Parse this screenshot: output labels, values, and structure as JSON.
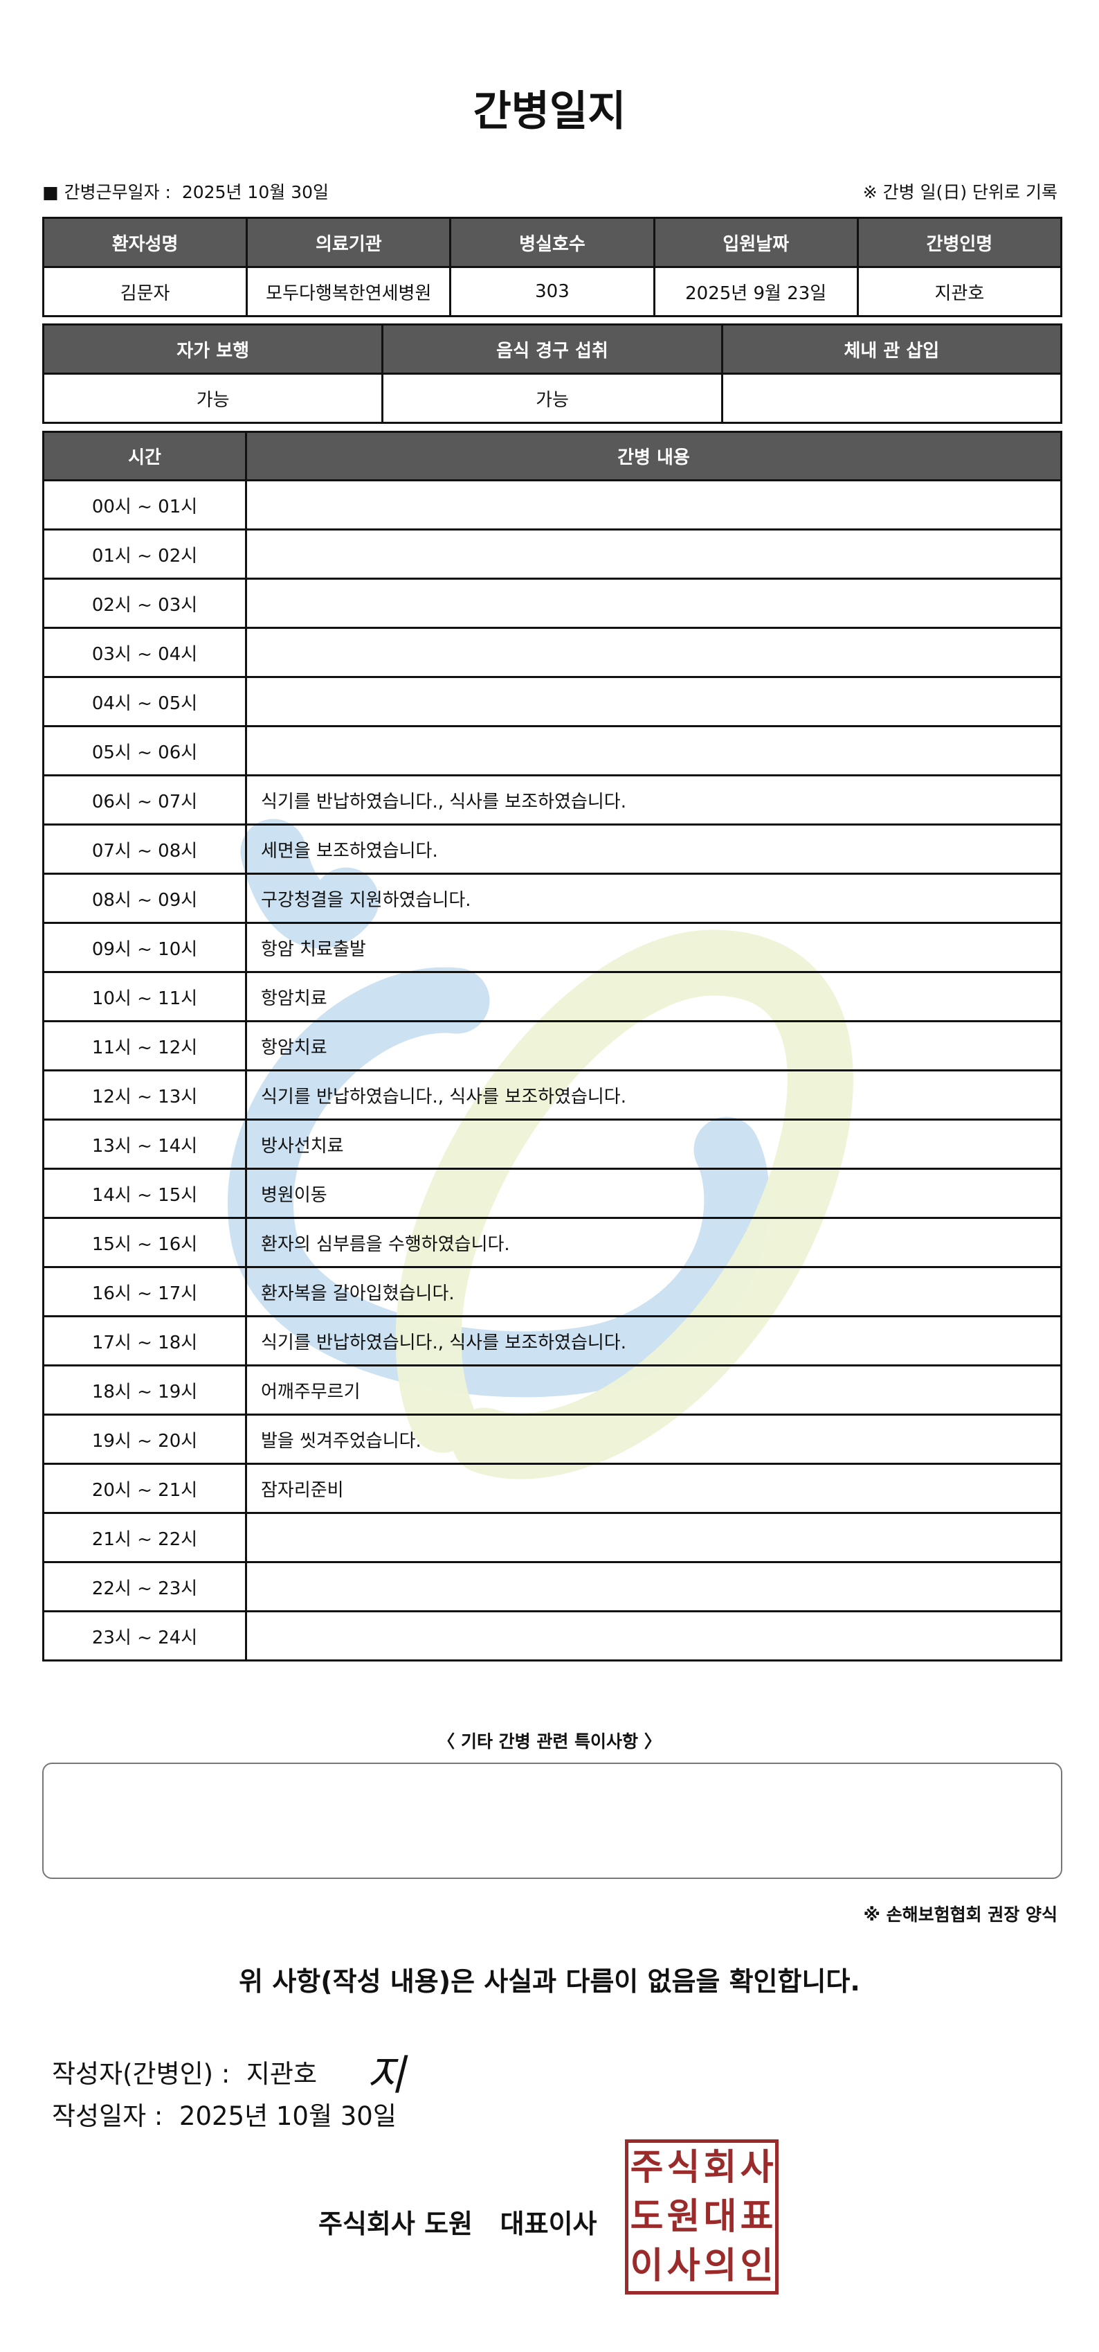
{
  "title": "간병일지",
  "info": {
    "work_date_label": "■ 간병근무일자 :",
    "work_date": "2025년 10월 30일",
    "note": "※ 간병 일(日) 단위로 기록"
  },
  "patient_table": {
    "headers": [
      "환자성명",
      "의료기관",
      "병실호수",
      "입원날짜",
      "간병인명"
    ],
    "values": [
      "김문자",
      "모두다행복한연세병원",
      "303",
      "2025년 9월 23일",
      "지관호"
    ]
  },
  "status_table": {
    "headers": [
      "자가 보행",
      "음식 경구 섭취",
      "체내 관 삽입"
    ],
    "values": [
      "가능",
      "가능",
      ""
    ]
  },
  "log_table": {
    "headers": [
      "시간",
      "간병 내용"
    ],
    "rows": [
      {
        "time": "00시 ~ 01시",
        "content": ""
      },
      {
        "time": "01시 ~ 02시",
        "content": ""
      },
      {
        "time": "02시 ~ 03시",
        "content": ""
      },
      {
        "time": "03시 ~ 04시",
        "content": ""
      },
      {
        "time": "04시 ~ 05시",
        "content": ""
      },
      {
        "time": "05시 ~ 06시",
        "content": ""
      },
      {
        "time": "06시 ~ 07시",
        "content": "식기를 반납하였습니다., 식사를 보조하였습니다."
      },
      {
        "time": "07시 ~ 08시",
        "content": "세면을 보조하였습니다."
      },
      {
        "time": "08시 ~ 09시",
        "content": "구강청결을 지원하였습니다."
      },
      {
        "time": "09시 ~ 10시",
        "content": "항암 치료출발"
      },
      {
        "time": "10시 ~ 11시",
        "content": "항암치료"
      },
      {
        "time": "11시 ~ 12시",
        "content": "항암치료"
      },
      {
        "time": "12시 ~ 13시",
        "content": "식기를 반납하였습니다., 식사를 보조하였습니다."
      },
      {
        "time": "13시 ~ 14시",
        "content": "방사선치료"
      },
      {
        "time": "14시 ~ 15시",
        "content": "병원이동"
      },
      {
        "time": "15시 ~ 16시",
        "content": "환자의 심부름을 수행하였습니다."
      },
      {
        "time": "16시 ~ 17시",
        "content": "환자복을 갈아입혔습니다."
      },
      {
        "time": "17시 ~ 18시",
        "content": "식기를 반납하였습니다., 식사를 보조하였습니다."
      },
      {
        "time": "18시 ~ 19시",
        "content": "어깨주무르기"
      },
      {
        "time": "19시 ~ 20시",
        "content": "발을 씻겨주었습니다."
      },
      {
        "time": "20시 ~ 21시",
        "content": "잠자리준비"
      },
      {
        "time": "21시 ~ 22시",
        "content": ""
      },
      {
        "time": "22시 ~ 23시",
        "content": ""
      },
      {
        "time": "23시 ~ 24시",
        "content": ""
      }
    ]
  },
  "notes": {
    "label": "〈 기타 간병 관련 특이사항 〉",
    "value": ""
  },
  "insurance_note": "※ 손해보험협회 권장 양식",
  "confirmation": "위 사항(작성 내용)은 사실과 다름이 없음을 확인합니다.",
  "author": {
    "label": "작성자(간병인) :",
    "name": "지관호",
    "signature": "지"
  },
  "written_date": {
    "label": "작성일자 :",
    "value": "2025년 10월 30일"
  },
  "company": "주식회사 도원   대표이사",
  "stamp": {
    "text": "주식회사도원대표이사의인",
    "color": "#9b2b2b"
  },
  "colors": {
    "header_bg": "#595959",
    "watermark_blue": "#c9dff0",
    "watermark_yellow": "#eef3d6"
  }
}
